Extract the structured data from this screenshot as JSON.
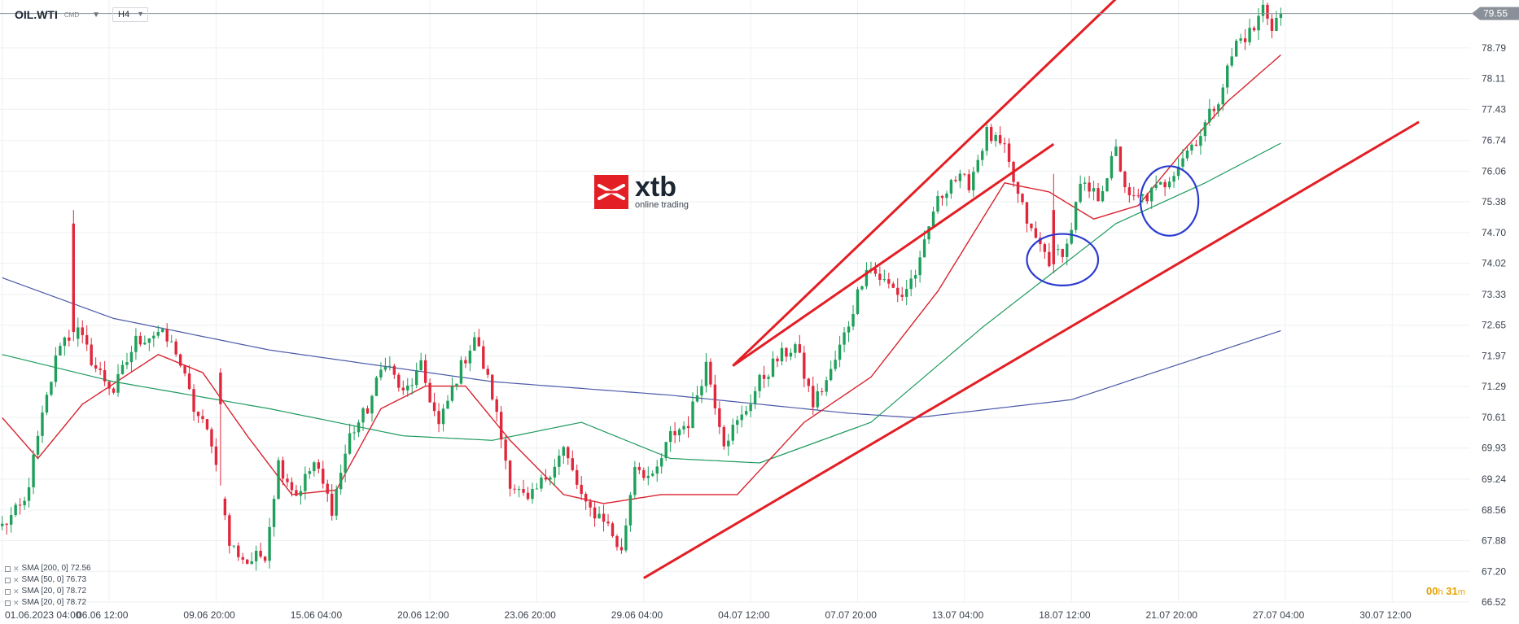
{
  "header": {
    "symbol": "OIL.WTI",
    "symbol_suffix": "CMD",
    "timeframe": "H4"
  },
  "logo": {
    "word": "xtb",
    "subtitle": "online trading",
    "color": "#e31e24"
  },
  "indicators_legend": [
    "SMA [200, 0] 72.56",
    "SMA [50, 0] 76.73",
    "SMA [20, 0] 78.72",
    "SMA [20, 0] 78.72"
  ],
  "countdown": {
    "hours": "00",
    "hours_unit": "h",
    "minutes": "31",
    "minutes_unit": "m"
  },
  "chart_data": {
    "type": "candlestick",
    "symbol": "OIL.WTI",
    "interval": "H4",
    "last_price": 79.55,
    "last_price_label": "79.55",
    "ylim": [
      66.52,
      79.85
    ],
    "y_ticks": [
      "78.79",
      "78.11",
      "77.43",
      "76.74",
      "76.06",
      "75.38",
      "74.70",
      "74.02",
      "73.33",
      "72.65",
      "71.97",
      "71.29",
      "70.61",
      "69.93",
      "69.24",
      "68.56",
      "67.88",
      "67.20",
      "66.52"
    ],
    "x_ticks": [
      "01.06.2023  04:00",
      "06.06  12:00",
      "09.06  20:00",
      "15.06  04:00",
      "20.06  12:00",
      "23.06  20:00",
      "29.06  04:00",
      "04.07  12:00",
      "07.07  20:00",
      "13.07  04:00",
      "18.07  12:00",
      "21.07  20:00",
      "27.07  04:00",
      "30.07  12:00"
    ],
    "x_tick_index": [
      0,
      24,
      48,
      72,
      96,
      120,
      144,
      168,
      192,
      216,
      240,
      264,
      288,
      312
    ],
    "n_slots": 330,
    "candle_count": 288,
    "start_price": 68.2,
    "colors": {
      "up": "#1ea05a",
      "down": "#e0273b",
      "sma200": "#4c59a8",
      "sma50": "#1f9a5e",
      "sma20": "#d9232e",
      "channel": "#e31e24",
      "ellipse": "#2b3bd0",
      "last_line": "#8a9099",
      "grid": "#eef0f2"
    },
    "waypoints": [
      [
        0,
        68.2
      ],
      [
        5,
        68.7
      ],
      [
        9,
        70.6
      ],
      [
        13,
        72.3
      ],
      [
        17,
        72.5
      ],
      [
        21,
        71.7
      ],
      [
        25,
        71.2
      ],
      [
        30,
        72.3
      ],
      [
        35,
        72.5
      ],
      [
        39,
        72.1
      ],
      [
        43,
        70.8
      ],
      [
        47,
        70.1
      ],
      [
        51,
        67.8
      ],
      [
        55,
        67.4
      ],
      [
        59,
        67.6
      ],
      [
        62,
        69.6
      ],
      [
        66,
        68.9
      ],
      [
        70,
        69.6
      ],
      [
        74,
        68.6
      ],
      [
        78,
        70.2
      ],
      [
        82,
        70.8
      ],
      [
        86,
        71.9
      ],
      [
        90,
        71.1
      ],
      [
        94,
        71.7
      ],
      [
        98,
        70.4
      ],
      [
        102,
        71.5
      ],
      [
        106,
        72.4
      ],
      [
        110,
        71.1
      ],
      [
        114,
        69.2
      ],
      [
        118,
        68.7
      ],
      [
        122,
        69.3
      ],
      [
        126,
        69.9
      ],
      [
        131,
        68.6
      ],
      [
        135,
        68.4
      ],
      [
        139,
        67.6
      ],
      [
        142,
        69.6
      ],
      [
        146,
        69.2
      ],
      [
        150,
        70.2
      ],
      [
        154,
        70.5
      ],
      [
        158,
        71.8
      ],
      [
        162,
        70.1
      ],
      [
        166,
        70.6
      ],
      [
        170,
        71.4
      ],
      [
        174,
        71.9
      ],
      [
        178,
        72.2
      ],
      [
        182,
        70.9
      ],
      [
        186,
        71.6
      ],
      [
        190,
        72.7
      ],
      [
        194,
        74.0
      ],
      [
        198,
        73.6
      ],
      [
        202,
        73.3
      ],
      [
        206,
        74.0
      ],
      [
        209,
        75.2
      ],
      [
        213,
        75.9
      ],
      [
        217,
        75.8
      ],
      [
        221,
        76.9
      ],
      [
        225,
        76.5
      ],
      [
        228,
        75.5
      ],
      [
        231,
        74.7
      ],
      [
        235,
        74.1
      ],
      [
        239,
        74.4
      ],
      [
        242,
        75.7
      ],
      [
        246,
        75.5
      ],
      [
        250,
        76.5
      ],
      [
        253,
        75.4
      ],
      [
        257,
        75.5
      ],
      [
        261,
        75.8
      ],
      [
        265,
        76.4
      ],
      [
        269,
        76.9
      ],
      [
        273,
        77.7
      ],
      [
        277,
        78.9
      ],
      [
        281,
        79.2
      ],
      [
        283,
        79.7
      ],
      [
        285,
        79.3
      ],
      [
        287,
        79.55
      ]
    ],
    "spikes": [
      {
        "i": 16,
        "dir": "down",
        "open": 74.9,
        "close": 72.5,
        "high": 75.2,
        "low": 72.3
      },
      {
        "i": 49,
        "dir": "down",
        "open": 71.6,
        "close": 70.9,
        "high": 71.7,
        "low": 69.1
      },
      {
        "i": 236,
        "dir": "down",
        "open": 75.2,
        "close": 74.0,
        "high": 76.0,
        "low": 73.8
      }
    ],
    "sma200": [
      [
        0,
        73.7
      ],
      [
        25,
        72.8
      ],
      [
        60,
        72.1
      ],
      [
        110,
        71.4
      ],
      [
        150,
        71.1
      ],
      [
        190,
        70.7
      ],
      [
        205,
        70.6
      ],
      [
        240,
        71.0
      ],
      [
        288,
        72.56
      ]
    ],
    "sma50": [
      [
        0,
        72.0
      ],
      [
        25,
        71.4
      ],
      [
        60,
        70.8
      ],
      [
        90,
        70.2
      ],
      [
        110,
        70.1
      ],
      [
        130,
        70.5
      ],
      [
        150,
        69.7
      ],
      [
        170,
        69.6
      ],
      [
        195,
        70.5
      ],
      [
        220,
        72.6
      ],
      [
        250,
        74.9
      ],
      [
        270,
        75.8
      ],
      [
        288,
        76.73
      ]
    ],
    "sma20": [
      [
        0,
        70.6
      ],
      [
        8,
        69.7
      ],
      [
        18,
        70.9
      ],
      [
        35,
        72.0
      ],
      [
        45,
        71.6
      ],
      [
        55,
        70.2
      ],
      [
        65,
        68.9
      ],
      [
        75,
        69.0
      ],
      [
        85,
        70.8
      ],
      [
        95,
        71.3
      ],
      [
        104,
        71.3
      ],
      [
        114,
        70.1
      ],
      [
        126,
        68.9
      ],
      [
        135,
        68.7
      ],
      [
        148,
        68.9
      ],
      [
        165,
        68.9
      ],
      [
        180,
        70.5
      ],
      [
        195,
        71.5
      ],
      [
        210,
        73.4
      ],
      [
        225,
        75.8
      ],
      [
        235,
        75.6
      ],
      [
        245,
        75.0
      ],
      [
        255,
        75.3
      ],
      [
        265,
        76.5
      ],
      [
        275,
        77.6
      ],
      [
        288,
        78.72
      ]
    ],
    "channel_upper": [
      [
        164,
        71.75
      ],
      [
        264,
        81.2
      ]
    ],
    "channel_middle": [
      [
        164,
        71.75
      ],
      [
        236,
        76.66
      ]
    ],
    "channel_lower": [
      [
        144,
        67.05
      ],
      [
        318,
        77.15
      ]
    ],
    "ellipses": [
      {
        "cx": 238,
        "cy": 74.1,
        "rx": 8,
        "ry": 0.57
      },
      {
        "cx": 262,
        "cy": 75.4,
        "rx": 6.5,
        "ry": 0.77
      }
    ]
  }
}
